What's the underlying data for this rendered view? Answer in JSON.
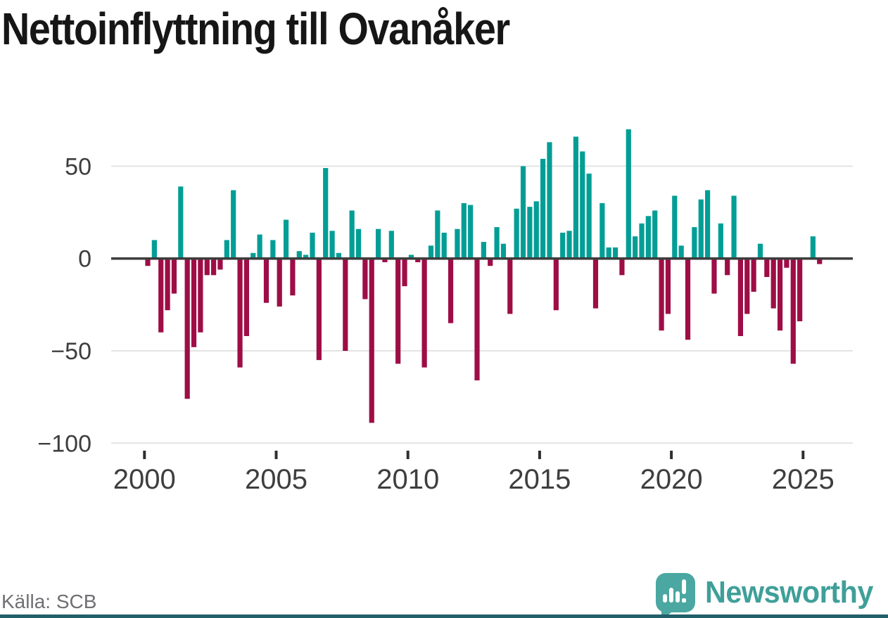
{
  "title": "Nettoinflyttning till Ovanåker",
  "source": "Källa: SCB",
  "logo": {
    "text": "Newsworthy"
  },
  "colors": {
    "positive": "#029e96",
    "negative": "#9e0d46",
    "zero_line": "#3d3d3d",
    "gridline": "#e4e4e4",
    "axis_text": "#3e3e3e",
    "tick_mark": "#2f2f2f",
    "source_text": "#6f6f74",
    "logo_bubble": "#4ba7a1",
    "logo_wordmark": "#3f9f99",
    "footer_accent": "#215f69"
  },
  "chart_data": {
    "type": "bar",
    "title": "Nettoinflyttning till Ovanåker",
    "frequency": "quarterly",
    "start": {
      "year": 2000,
      "quarter": 1
    },
    "values": [
      -4,
      10,
      -40,
      -28,
      -19,
      39,
      -76,
      -48,
      -40,
      -9,
      -9,
      -6,
      10,
      37,
      -59,
      -42,
      3,
      13,
      -24,
      10,
      -26,
      21,
      -20,
      4,
      2,
      14,
      -55,
      49,
      15,
      3,
      -50,
      26,
      16,
      -22,
      -89,
      16,
      -2,
      15,
      -57,
      -15,
      2,
      -2,
      -59,
      7,
      26,
      14,
      -35,
      16,
      30,
      29,
      -66,
      9,
      -4,
      17,
      8,
      -30,
      27,
      50,
      28,
      31,
      54,
      63,
      -28,
      14,
      15,
      66,
      58,
      46,
      -27,
      30,
      6,
      6,
      -9,
      70,
      12,
      19,
      23,
      26,
      -39,
      -30,
      34,
      7,
      -44,
      17,
      32,
      37,
      -19,
      19,
      -9,
      34,
      -42,
      -30,
      -18,
      8,
      -10,
      -27,
      -39,
      -5,
      -57,
      -34,
      0,
      12,
      -3
    ],
    "y_ticks": [
      {
        "value": 50,
        "label": "50"
      },
      {
        "value": 0,
        "label": "0"
      },
      {
        "value": -50,
        "label": "−50"
      },
      {
        "value": -100,
        "label": "−100"
      }
    ],
    "x_ticks": [
      {
        "year": 2000,
        "label": "2000"
      },
      {
        "year": 2005,
        "label": "2005"
      },
      {
        "year": 2010,
        "label": "2010"
      },
      {
        "year": 2015,
        "label": "2015"
      },
      {
        "year": 2020,
        "label": "2020"
      },
      {
        "year": 2025,
        "label": "2025"
      }
    ],
    "ylim": [
      -100,
      75
    ],
    "grid": "horizontal",
    "legend": "none",
    "positive_color": "#029e96",
    "negative_color": "#9e0d46"
  }
}
